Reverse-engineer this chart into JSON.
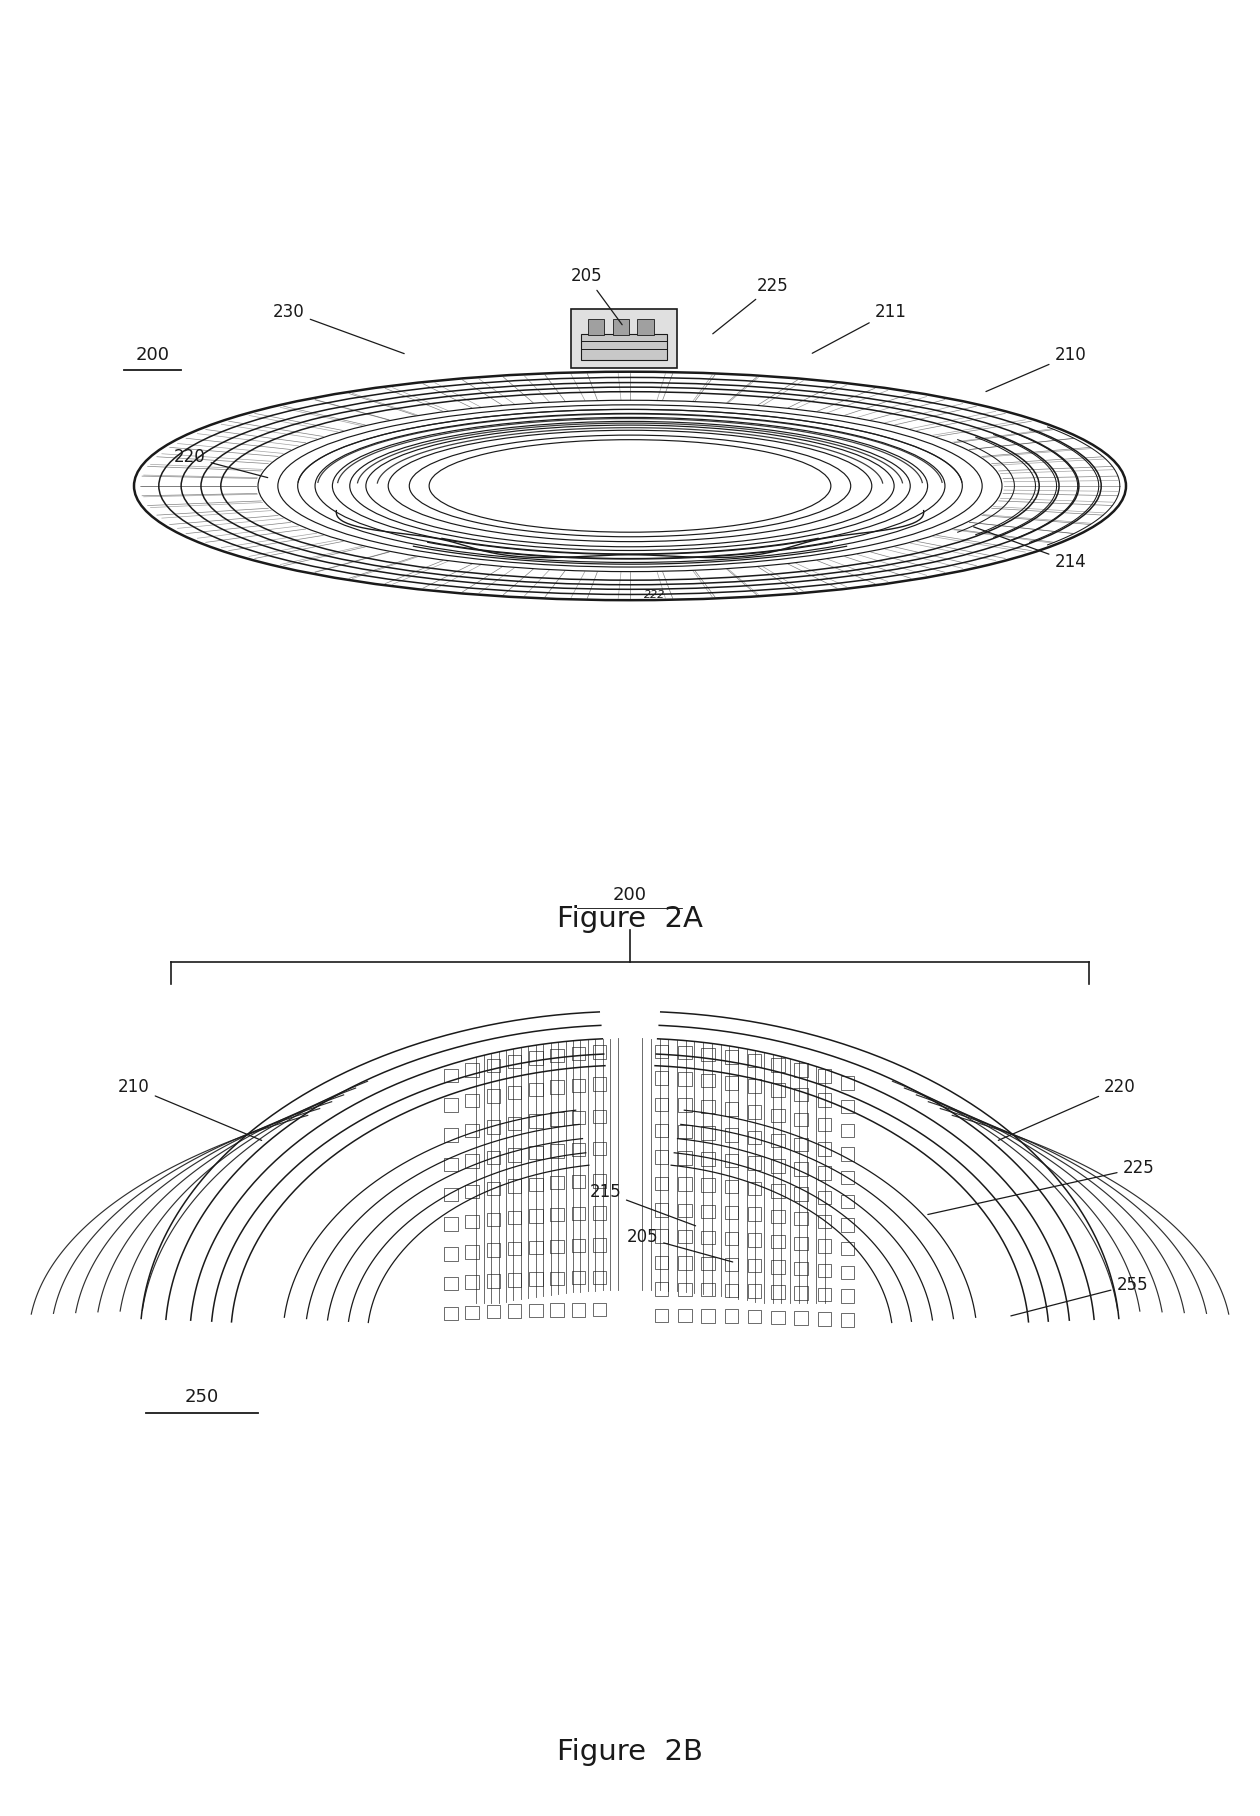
{
  "fig_width": 12.4,
  "fig_height": 17.96,
  "bg_color": "#ffffff",
  "line_color": "#1a1a1a",
  "fig2a_title": "Figure  2A",
  "fig2b_title": "Figure  2B"
}
